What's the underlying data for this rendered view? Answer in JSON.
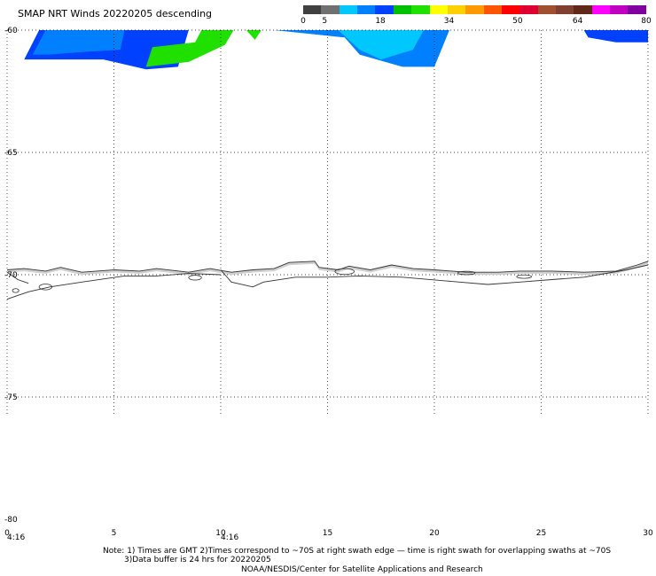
{
  "title": "SMAP NRT Winds  20220205 descending",
  "legend": {
    "colors": [
      "#404040",
      "#707070",
      "#00c8ff",
      "#0080ff",
      "#0040ff",
      "#00c000",
      "#20e000",
      "#ffff00",
      "#ffd000",
      "#ff9900",
      "#ff5500",
      "#ff0000",
      "#e00030",
      "#a05030",
      "#804030",
      "#602818",
      "#ff00ff",
      "#c000c0",
      "#8000a0"
    ],
    "labels": [
      "0",
      "5",
      "18",
      "34",
      "50",
      "64",
      "80"
    ],
    "label_values": [
      0,
      5,
      18,
      34,
      50,
      64,
      80
    ]
  },
  "axes": {
    "y_ticks": [
      -60,
      -65,
      -70,
      -75,
      -80
    ],
    "y_labels": [
      "-60",
      "-65",
      "-70",
      "-75",
      "-80"
    ],
    "x_ticks": [
      0,
      5,
      10,
      15,
      20,
      25,
      30
    ],
    "x_labels": [
      "0",
      "5",
      "10",
      "15",
      "20",
      "25",
      "30"
    ],
    "time_labels": [
      {
        "x": 0,
        "text": "4:16"
      },
      {
        "x": 10,
        "text": "4:16"
      }
    ],
    "xlim": [
      0,
      30
    ],
    "ylim": [
      -80,
      -60
    ]
  },
  "notes": {
    "line1": "Note: 1) Times are GMT 2)Times correspond to ~70S at right swath edge — time is right swath for overlapping swaths at ~70S",
    "line2": "3)Data buffer is 24 hrs for 20220205",
    "line3": "NOAA/NESDIS/Center for Satellite Applications and Research"
  },
  "swaths": [
    {
      "color": "#0040ff",
      "points": [
        [
          1.5,
          -60.0
        ],
        [
          8.5,
          -60.0
        ],
        [
          8.0,
          -61.5
        ],
        [
          6.5,
          -61.6
        ],
        [
          4.5,
          -61.2
        ],
        [
          2.0,
          -61.2
        ],
        [
          0.8,
          -61.2
        ]
      ]
    },
    {
      "color": "#0080ff",
      "points": [
        [
          1.8,
          -60.0
        ],
        [
          5.5,
          -60.0
        ],
        [
          5.3,
          -60.8
        ],
        [
          3.5,
          -60.9
        ],
        [
          2.0,
          -61.0
        ],
        [
          1.2,
          -61.0
        ]
      ]
    },
    {
      "color": "#20e000",
      "points": [
        [
          9.1,
          -60.0
        ],
        [
          10.6,
          -60.0
        ],
        [
          10.2,
          -60.6
        ],
        [
          8.5,
          -61.3
        ],
        [
          6.5,
          -61.5
        ],
        [
          6.8,
          -60.7
        ],
        [
          8.8,
          -60.5
        ]
      ]
    },
    {
      "color": "#20e000",
      "points": [
        [
          11.2,
          -60.0
        ],
        [
          11.9,
          -60.0
        ],
        [
          11.6,
          -60.4
        ]
      ]
    },
    {
      "color": "#0080ff",
      "points": [
        [
          12.5,
          -60.0
        ],
        [
          20.7,
          -60.0
        ],
        [
          20.0,
          -61.5
        ],
        [
          18.5,
          -61.5
        ],
        [
          16.5,
          -61.0
        ],
        [
          15.8,
          -60.3
        ]
      ]
    },
    {
      "color": "#00c8ff",
      "points": [
        [
          15.5,
          -60.0
        ],
        [
          19.5,
          -60.0
        ],
        [
          19.0,
          -60.8
        ],
        [
          17.5,
          -61.2
        ],
        [
          16.5,
          -60.8
        ]
      ]
    },
    {
      "color": "#0040ff",
      "points": [
        [
          27.0,
          -60.0
        ],
        [
          30.0,
          -60.0
        ],
        [
          30.0,
          -60.5
        ],
        [
          28.5,
          -60.5
        ],
        [
          27.2,
          -60.3
        ]
      ]
    }
  ],
  "coastline": [
    [
      [
        0.0,
        -69.8
      ],
      [
        0.8,
        -69.75
      ],
      [
        1.8,
        -69.85
      ],
      [
        2.5,
        -69.7
      ],
      [
        3.5,
        -69.9
      ],
      [
        5.0,
        -69.8
      ],
      [
        6.2,
        -69.85
      ],
      [
        7.0,
        -69.75
      ],
      [
        8.5,
        -69.9
      ],
      [
        9.5,
        -69.75
      ],
      [
        10.5,
        -69.9
      ],
      [
        11.5,
        -69.8
      ],
      [
        12.5,
        -69.75
      ],
      [
        13.2,
        -69.5
      ],
      [
        14.4,
        -69.45
      ],
      [
        14.6,
        -69.7
      ],
      [
        15.5,
        -69.8
      ],
      [
        16.0,
        -69.65
      ],
      [
        17.0,
        -69.8
      ],
      [
        18.0,
        -69.6
      ],
      [
        19.0,
        -69.75
      ],
      [
        20.0,
        -69.8
      ],
      [
        21.5,
        -69.9
      ],
      [
        23.0,
        -69.9
      ],
      [
        24.0,
        -69.85
      ],
      [
        25.5,
        -69.85
      ],
      [
        27.0,
        -69.9
      ],
      [
        28.5,
        -69.85
      ],
      [
        29.5,
        -69.6
      ],
      [
        30.0,
        -69.45
      ]
    ],
    [
      [
        10.0,
        -69.8
      ],
      [
        10.5,
        -70.3
      ],
      [
        11.5,
        -70.5
      ],
      [
        12.0,
        -70.3
      ],
      [
        13.5,
        -70.1
      ],
      [
        15.0,
        -70.1
      ],
      [
        16.5,
        -70.05
      ],
      [
        18.5,
        -70.1
      ],
      [
        20.5,
        -70.25
      ],
      [
        22.5,
        -70.4
      ],
      [
        24.0,
        -70.3
      ],
      [
        25.5,
        -70.2
      ],
      [
        27.0,
        -70.1
      ],
      [
        29.0,
        -69.8
      ],
      [
        30.0,
        -69.6
      ]
    ],
    [
      [
        0.0,
        -71.0
      ],
      [
        1.0,
        -70.7
      ],
      [
        2.0,
        -70.5
      ],
      [
        3.5,
        -70.3
      ],
      [
        5.5,
        -70.05
      ],
      [
        7.0,
        -70.05
      ],
      [
        8.5,
        -69.95
      ],
      [
        10.0,
        -70.0
      ]
    ],
    [
      [
        0.0,
        -69.9
      ],
      [
        0.5,
        -70.2
      ],
      [
        1.0,
        -70.35
      ]
    ]
  ],
  "islands": [
    {
      "cx": 0.4,
      "cy": -70.65,
      "rx": 0.15,
      "ry": 0.08
    },
    {
      "cx": 1.8,
      "cy": -70.5,
      "rx": 0.3,
      "ry": 0.12
    },
    {
      "cx": 15.8,
      "cy": -69.87,
      "rx": 0.45,
      "ry": 0.12
    },
    {
      "cx": 8.8,
      "cy": -70.12,
      "rx": 0.3,
      "ry": 0.1
    },
    {
      "cx": 21.5,
      "cy": -69.93,
      "rx": 0.4,
      "ry": 0.07
    },
    {
      "cx": 24.2,
      "cy": -70.08,
      "rx": 0.35,
      "ry": 0.07
    }
  ]
}
